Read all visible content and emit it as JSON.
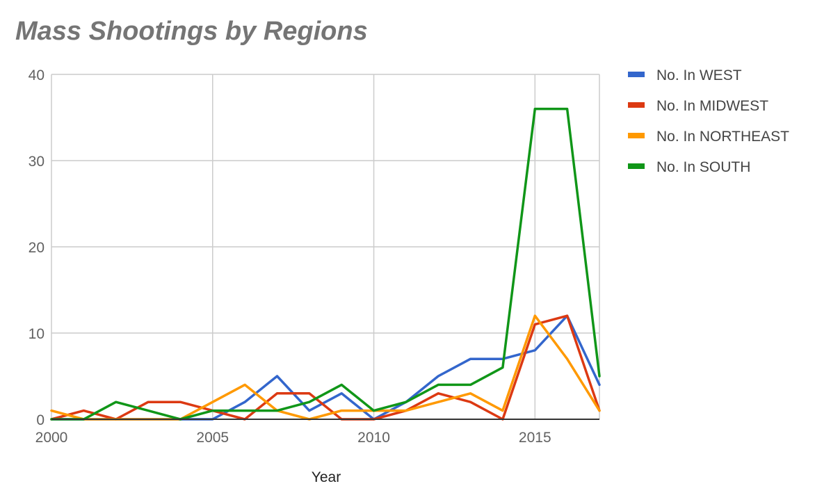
{
  "chart_data": {
    "type": "line",
    "title": "Mass Shootings by Regions",
    "xlabel": "Year",
    "ylabel": "",
    "xlim": [
      2000,
      2017
    ],
    "ylim": [
      0,
      40
    ],
    "x_ticks": [
      2000,
      2005,
      2010,
      2015
    ],
    "y_ticks": [
      0,
      10,
      20,
      30,
      40
    ],
    "grid": true,
    "legend_position": "right",
    "x": [
      2000,
      2001,
      2002,
      2003,
      2004,
      2005,
      2006,
      2007,
      2008,
      2009,
      2010,
      2011,
      2012,
      2013,
      2014,
      2015,
      2016,
      2017
    ],
    "series": [
      {
        "name": "No. In WEST",
        "color": "#3366cc",
        "values": [
          0,
          0,
          0,
          0,
          0,
          0,
          2,
          5,
          1,
          3,
          0,
          2,
          5,
          7,
          7,
          8,
          12,
          4
        ]
      },
      {
        "name": "No. In MIDWEST",
        "color": "#dc3912",
        "values": [
          0,
          1,
          0,
          2,
          2,
          1,
          0,
          3,
          3,
          0,
          0,
          1,
          3,
          2,
          0,
          11,
          12,
          1
        ]
      },
      {
        "name": "No. In NORTHEAST",
        "color": "#ff9900",
        "values": [
          1,
          0,
          0,
          0,
          0,
          2,
          4,
          1,
          0,
          1,
          1,
          1,
          2,
          3,
          1,
          12,
          7,
          1
        ]
      },
      {
        "name": "No. In SOUTH",
        "color": "#109618",
        "values": [
          0,
          0,
          2,
          1,
          0,
          1,
          1,
          1,
          2,
          4,
          1,
          2,
          4,
          4,
          6,
          36,
          36,
          5
        ]
      }
    ]
  }
}
